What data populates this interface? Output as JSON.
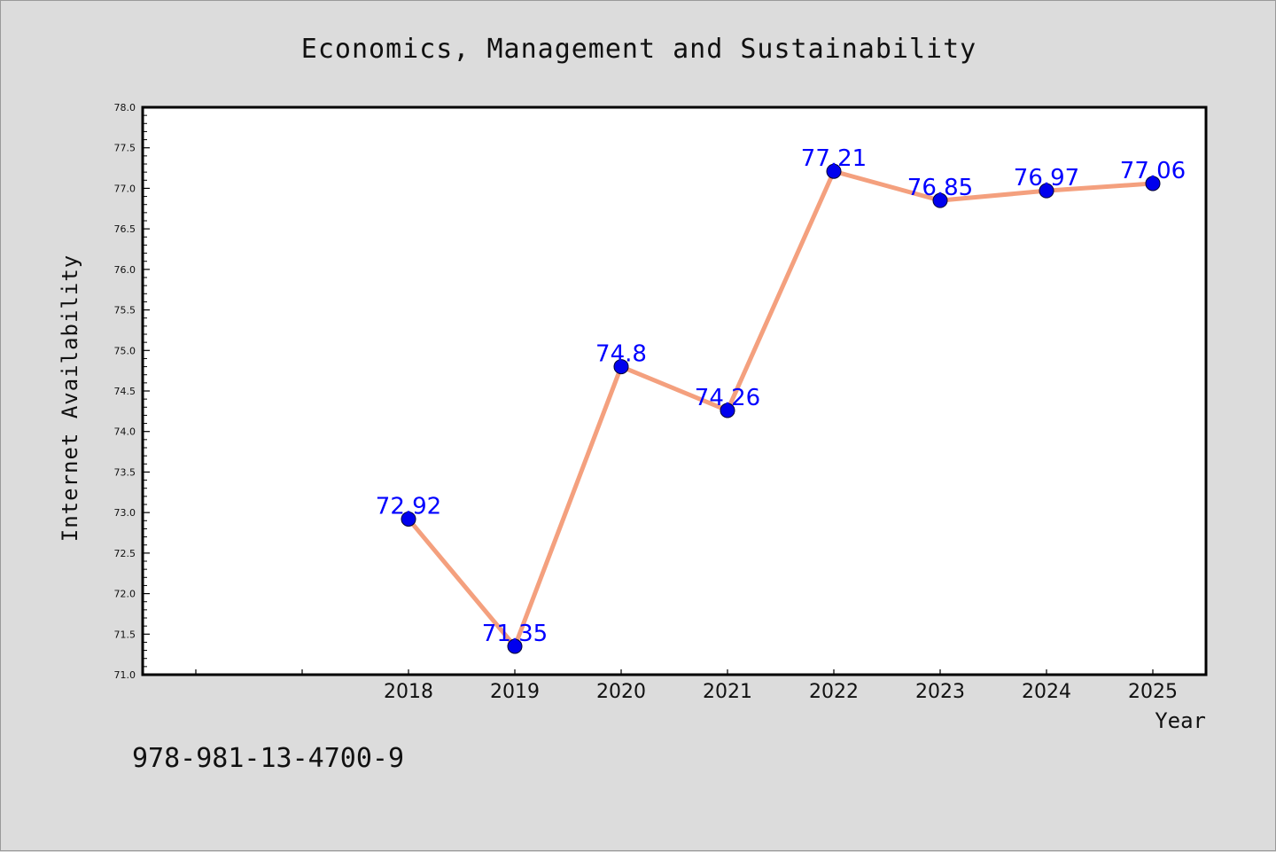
{
  "chart_data": {
    "type": "line",
    "title": "Economics, Management and Sustainability",
    "xlabel": "Year",
    "ylabel": "Internet Availability",
    "footer": "978-981-13-4700-9",
    "categories": [
      "2018",
      "2019",
      "2020",
      "2021",
      "2022",
      "2023",
      "2024",
      "2025"
    ],
    "series": [
      {
        "values": [
          72.92,
          71.35,
          74.8,
          74.26,
          77.21,
          76.85,
          76.97,
          77.06
        ],
        "labels": [
          "72.92",
          "71.35",
          "74.8",
          "74.26",
          "77.21",
          "76.85",
          "76.97",
          "77.06"
        ]
      }
    ],
    "ylim": [
      71.0,
      78.0
    ],
    "yticks": [
      "71.0",
      "71.5",
      "72.0",
      "72.5",
      "73.0",
      "73.5",
      "74.0",
      "74.5",
      "75.0",
      "75.5",
      "76.0",
      "76.5",
      "77.0",
      "77.5",
      "78.0"
    ],
    "grid": false,
    "colors": {
      "line": "#f4a07e",
      "marker": "#0000ee",
      "label": "#0000ff",
      "text": "#111111",
      "background": "#dcdcdc",
      "plot_background": "#ffffff"
    }
  }
}
